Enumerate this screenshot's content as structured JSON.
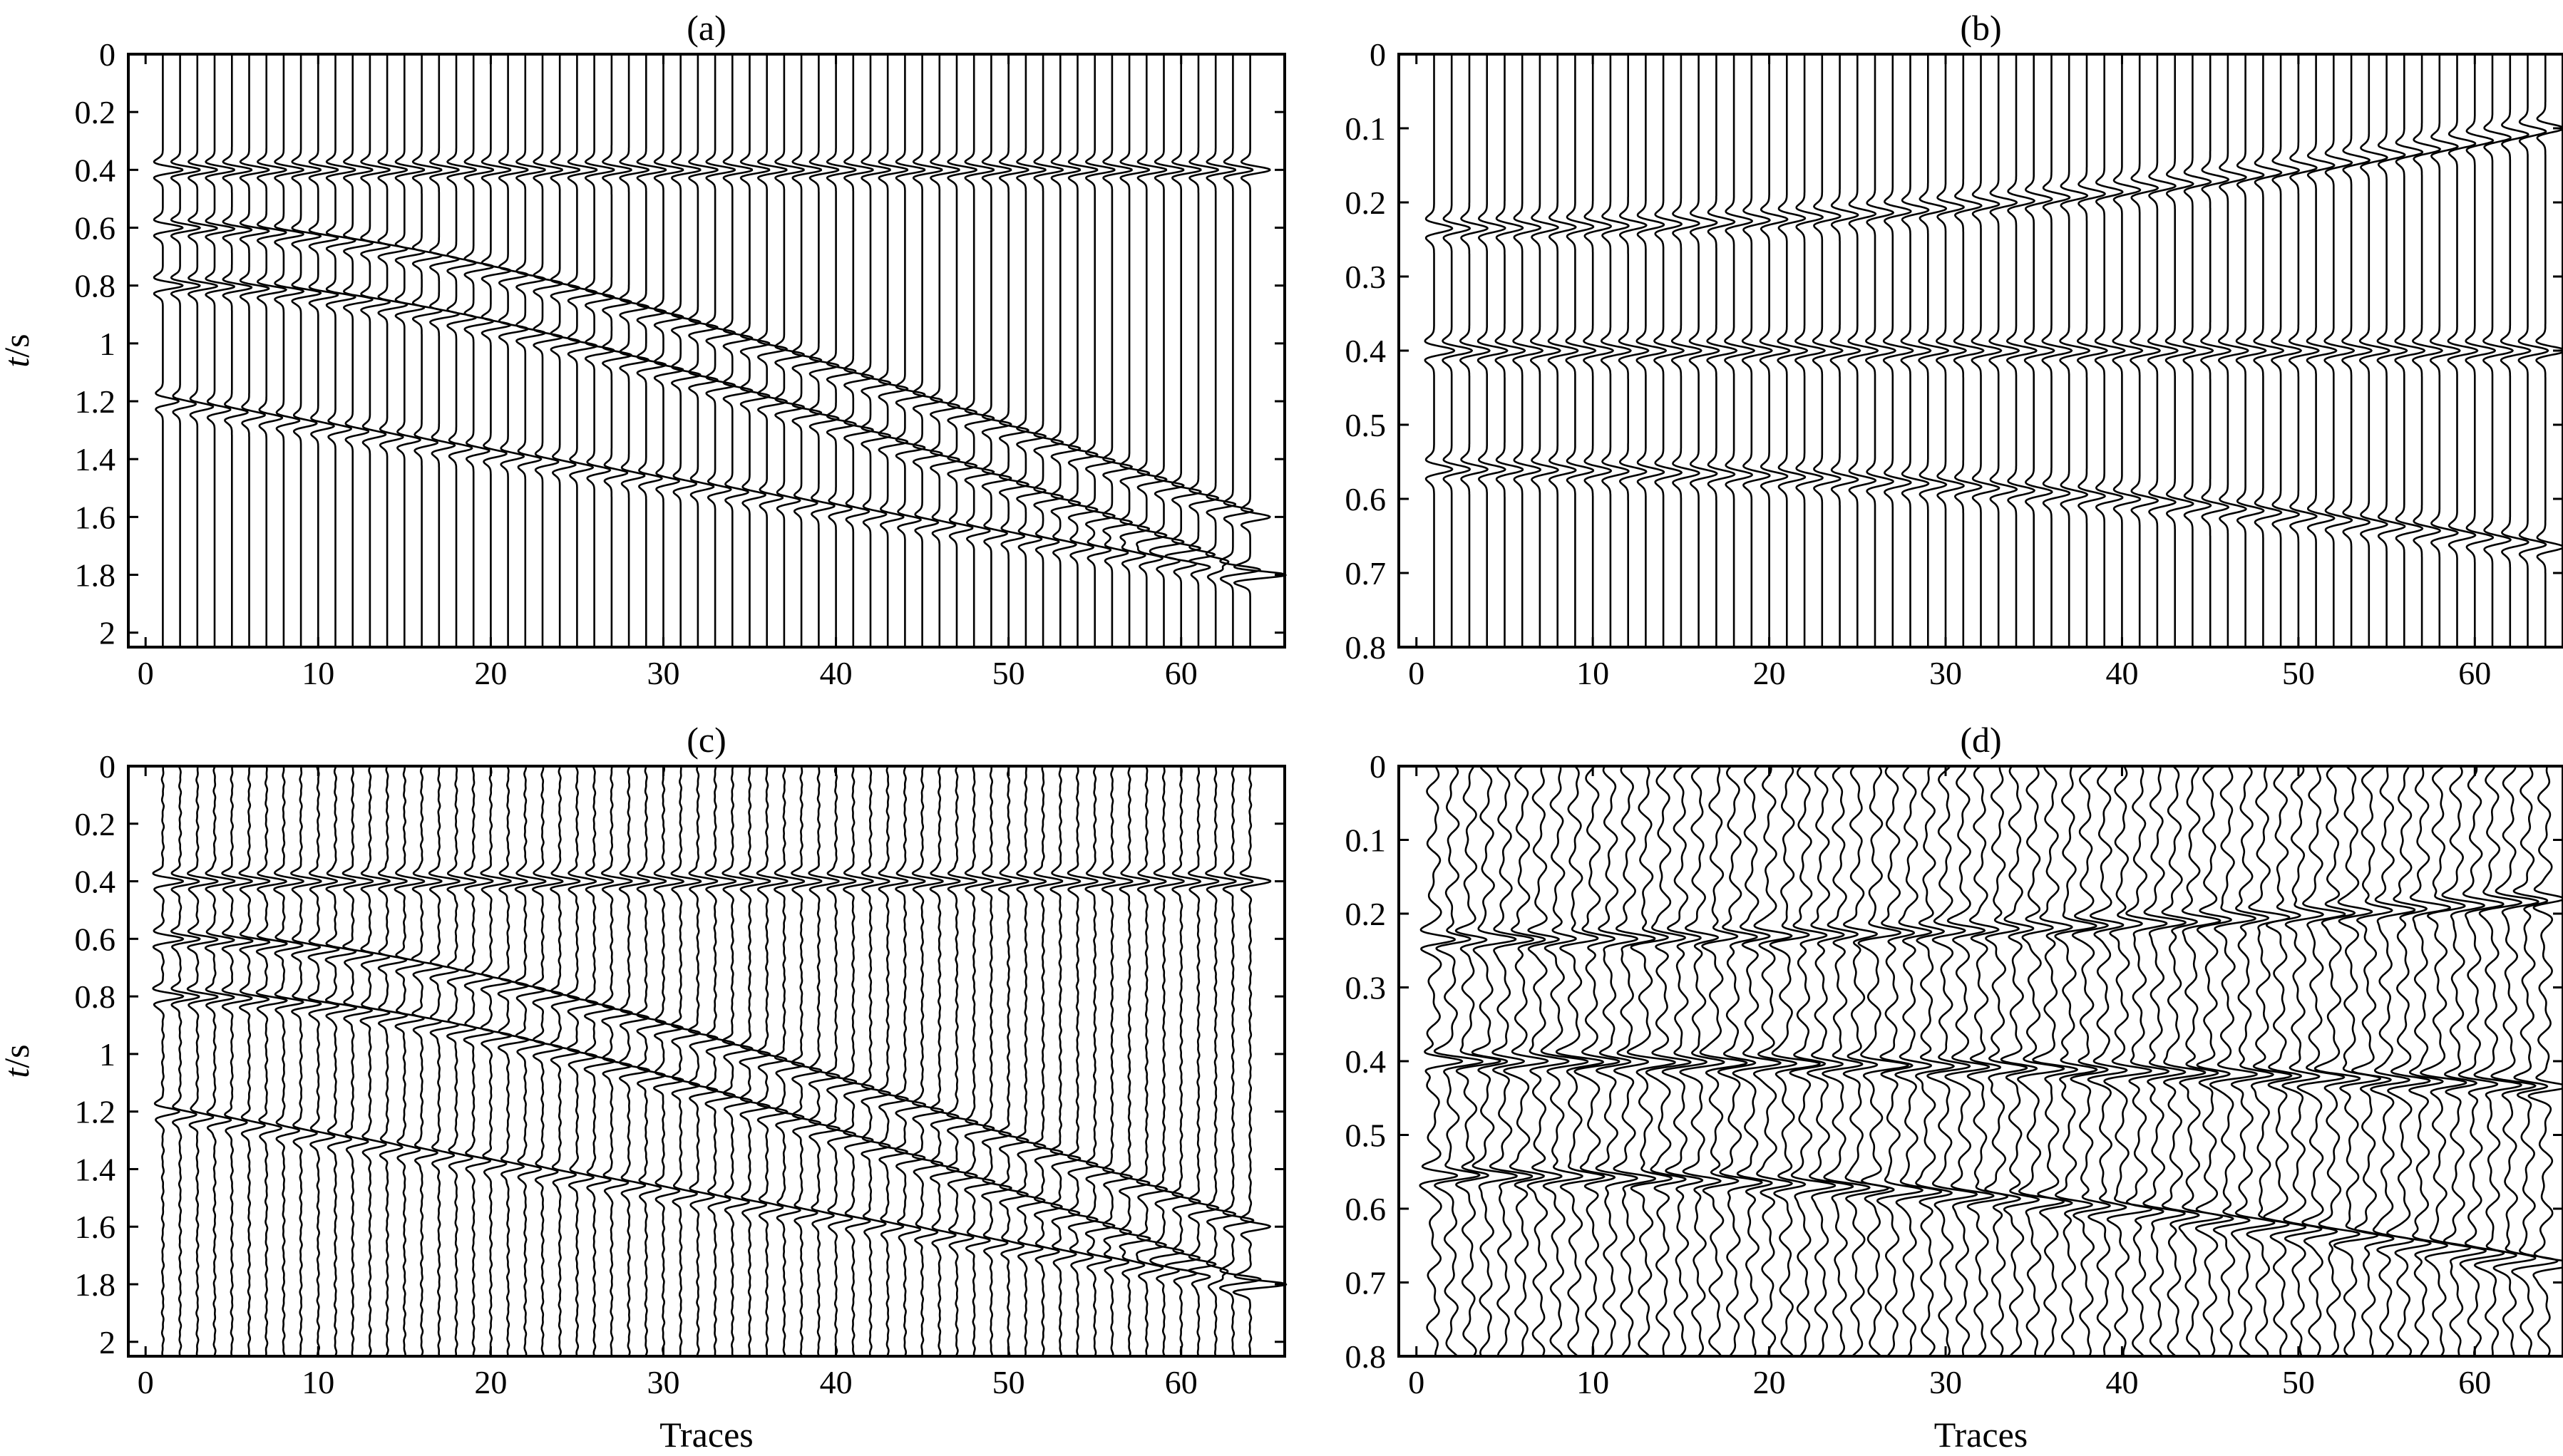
{
  "chart_data": [
    {
      "type": "wiggle",
      "title": "(a)",
      "xlabel": "",
      "ylabel": "t/s",
      "ylabel_italic_part": "t",
      "ylabel_rest": "/s",
      "xlim": [
        -1,
        66
      ],
      "ylim": [
        0,
        2.05
      ],
      "x_ticks": [
        0,
        10,
        20,
        30,
        40,
        50,
        60
      ],
      "x_tick_labels": [
        "0",
        "10",
        "20",
        "30",
        "40",
        "50",
        "60"
      ],
      "y_ticks": [
        0,
        0.2,
        0.4,
        0.6,
        0.8,
        1,
        1.2,
        1.4,
        1.6,
        1.8,
        2
      ],
      "y_tick_labels": [
        "0",
        "0.2",
        "0.4",
        "0.6",
        "0.8",
        "1",
        "1.2",
        "1.4",
        "1.6",
        "1.8",
        "2"
      ],
      "num_traces": 64,
      "noise": 0,
      "events": [
        {
          "shape": "flat",
          "t0": 0.4,
          "t_end": 0.4,
          "amplitude": 1.0
        },
        {
          "shape": "hyperbolic",
          "t0": 0.6,
          "t_end": 1.6,
          "amplitude": 1.0
        },
        {
          "shape": "hyperbolic",
          "t0": 0.8,
          "t_end": 1.8,
          "amplitude": 1.0
        },
        {
          "shape": "linear",
          "t0": 1.2,
          "t_end": 1.8,
          "amplitude": 0.8
        }
      ]
    },
    {
      "type": "wiggle",
      "title": "(b)",
      "xlabel": "",
      "ylabel": "",
      "xlim": [
        -1,
        65
      ],
      "ylim": [
        0,
        0.8
      ],
      "x_ticks": [
        0,
        10,
        20,
        30,
        40,
        50,
        60
      ],
      "x_tick_labels": [
        "0",
        "10",
        "20",
        "30",
        "40",
        "50",
        "60"
      ],
      "y_ticks": [
        0,
        0.1,
        0.2,
        0.3,
        0.4,
        0.5,
        0.6,
        0.7,
        0.8
      ],
      "y_tick_labels": [
        "0",
        "0.1",
        "0.2",
        "0.3",
        "0.4",
        "0.5",
        "0.6",
        "0.7",
        "0.8"
      ],
      "num_traces": 64,
      "noise": 0,
      "events": [
        {
          "shape": "curved-up",
          "t0": 0.235,
          "t_end": 0.1,
          "amplitude": 0.9
        },
        {
          "shape": "flat",
          "t0": 0.4,
          "t_end": 0.4,
          "amplitude": 1.0
        },
        {
          "shape": "curved-down",
          "t0": 0.56,
          "t_end": 0.665,
          "amplitude": 0.9
        }
      ]
    },
    {
      "type": "wiggle",
      "title": "(c)",
      "xlabel": "Traces",
      "ylabel": "t/s",
      "ylabel_italic_part": "t",
      "ylabel_rest": "/s",
      "xlim": [
        -1,
        66
      ],
      "ylim": [
        0,
        2.05
      ],
      "x_ticks": [
        0,
        10,
        20,
        30,
        40,
        50,
        60
      ],
      "x_tick_labels": [
        "0",
        "10",
        "20",
        "30",
        "40",
        "50",
        "60"
      ],
      "y_ticks": [
        0,
        0.2,
        0.4,
        0.6,
        0.8,
        1,
        1.2,
        1.4,
        1.6,
        1.8,
        2
      ],
      "y_tick_labels": [
        "0",
        "0.2",
        "0.4",
        "0.6",
        "0.8",
        "1",
        "1.2",
        "1.4",
        "1.6",
        "1.8",
        "2"
      ],
      "num_traces": 64,
      "noise": 0.05,
      "events": [
        {
          "shape": "flat",
          "t0": 0.4,
          "t_end": 0.4,
          "amplitude": 1.0
        },
        {
          "shape": "hyperbolic",
          "t0": 0.6,
          "t_end": 1.6,
          "amplitude": 1.0
        },
        {
          "shape": "hyperbolic",
          "t0": 0.8,
          "t_end": 1.8,
          "amplitude": 1.0
        },
        {
          "shape": "linear",
          "t0": 1.2,
          "t_end": 1.8,
          "amplitude": 0.8
        }
      ]
    },
    {
      "type": "wiggle",
      "title": "(d)",
      "xlabel": "Traces",
      "ylabel": "",
      "xlim": [
        -1,
        65
      ],
      "ylim": [
        0,
        0.8
      ],
      "x_ticks": [
        0,
        10,
        20,
        30,
        40,
        50,
        60
      ],
      "x_tick_labels": [
        "0",
        "10",
        "20",
        "30",
        "40",
        "50",
        "60"
      ],
      "y_ticks": [
        0,
        0.1,
        0.2,
        0.3,
        0.4,
        0.5,
        0.6,
        0.7,
        0.8
      ],
      "y_tick_labels": [
        "0",
        "0.1",
        "0.2",
        "0.3",
        "0.4",
        "0.5",
        "0.6",
        "0.7",
        "0.8"
      ],
      "num_traces": 64,
      "noise": 0.35,
      "events": [
        {
          "shape": "curved-up",
          "t0": 0.235,
          "t_end": 0.18,
          "amplitude": 1.1
        },
        {
          "shape": "curved-down",
          "t0": 0.4,
          "t_end": 0.435,
          "amplitude": 1.3
        },
        {
          "shape": "curved-down",
          "t0": 0.555,
          "t_end": 0.675,
          "amplitude": 1.2
        }
      ]
    }
  ]
}
